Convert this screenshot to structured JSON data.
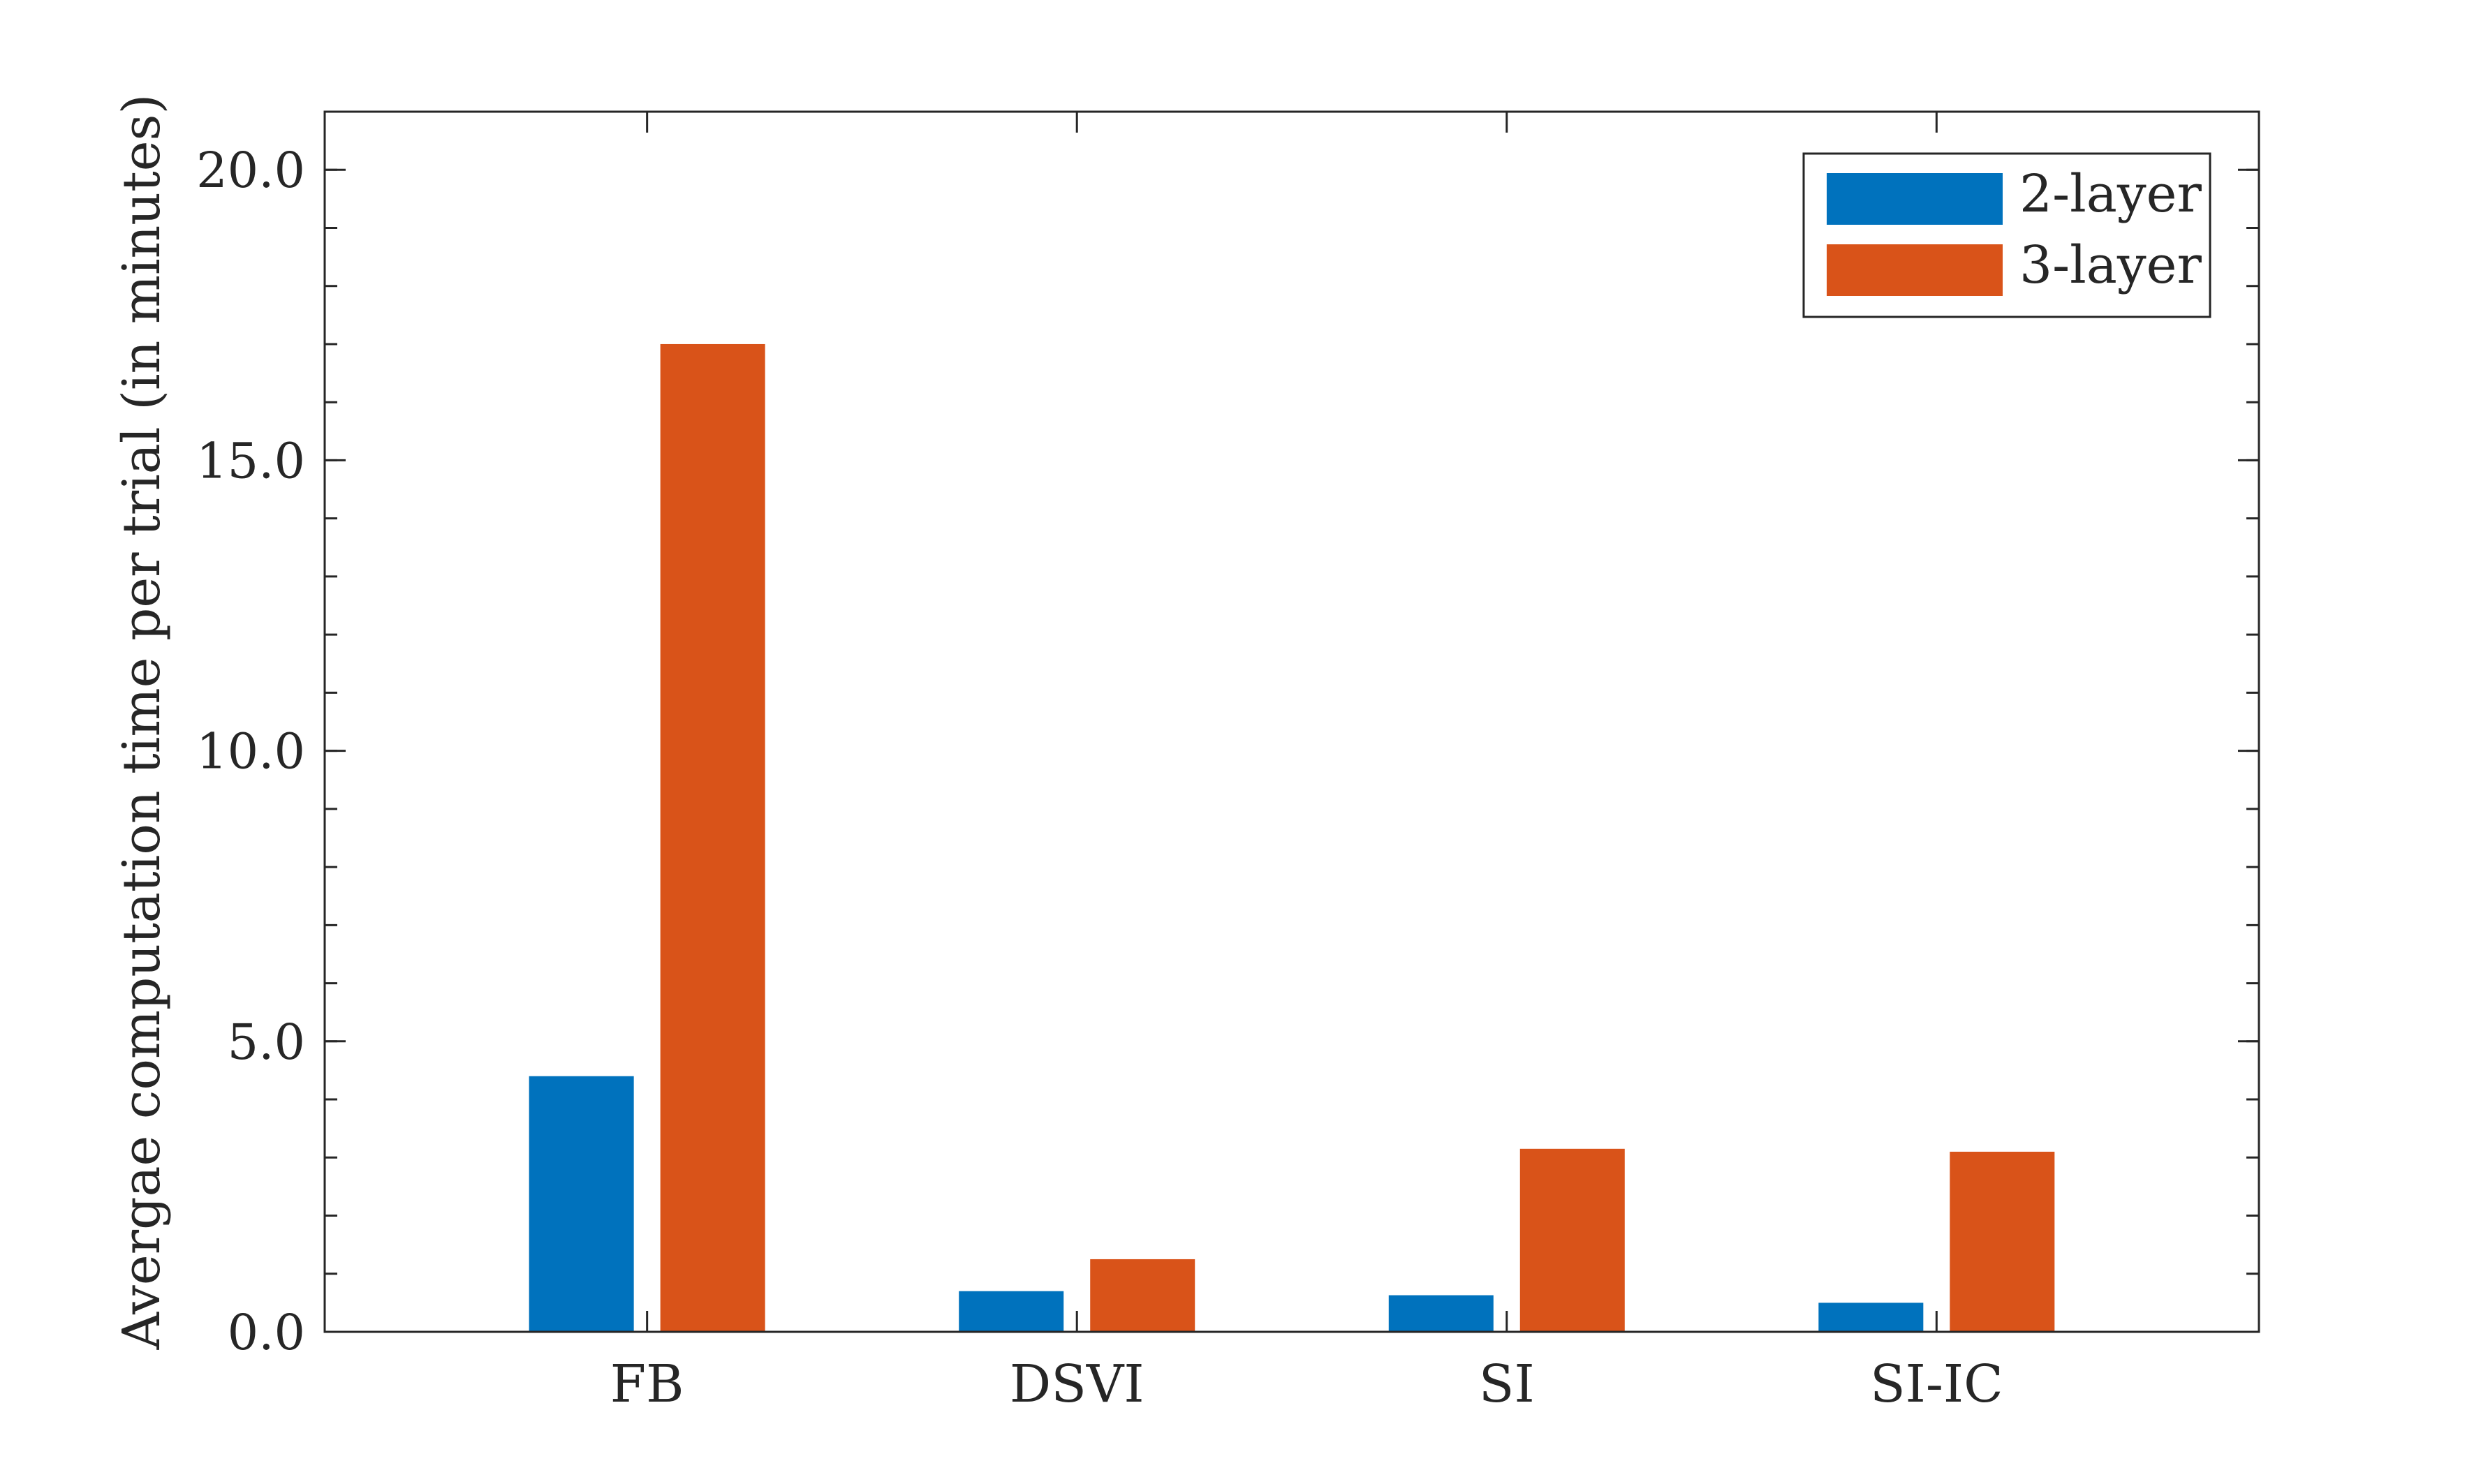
{
  "chart_data": {
    "type": "bar",
    "categories": [
      "FB",
      "DSVI",
      "SI",
      "SI-IC"
    ],
    "series": [
      {
        "name": "2-layer",
        "color": "#0072BD",
        "values": [
          4.4,
          0.7,
          0.63,
          0.5
        ]
      },
      {
        "name": "3-layer",
        "color": "#D95319",
        "values": [
          17.0,
          1.25,
          3.15,
          3.1
        ]
      }
    ],
    "title": "",
    "xlabel": "",
    "ylabel": "Avergae computation time per trial (in minutes)",
    "ylim": [
      0,
      21
    ],
    "yticks": [
      0,
      5,
      10,
      15,
      20
    ],
    "ytick_labels": [
      "0.0",
      "5.0",
      "10.0",
      "15.0",
      "20.0"
    ],
    "y_minor_step": 1,
    "grid": false,
    "legend_position": "top-right"
  }
}
